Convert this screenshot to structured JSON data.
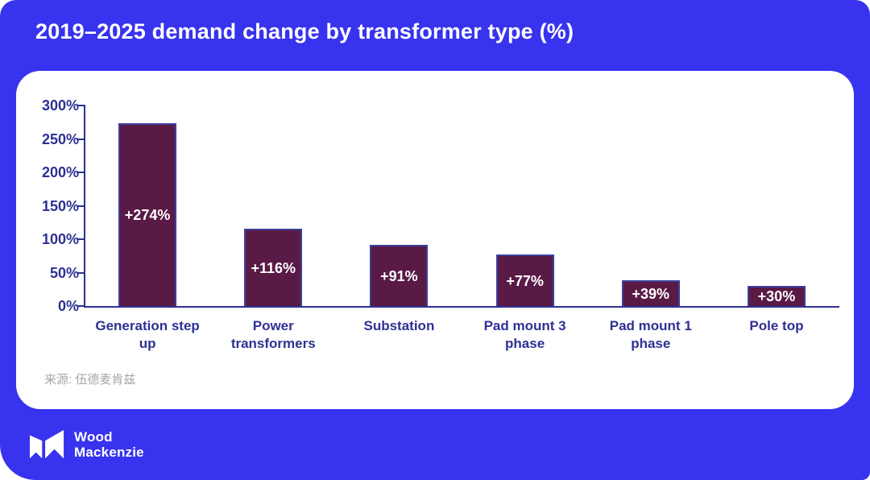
{
  "page": {
    "title": "2019–2025 demand change by transformer type (%)"
  },
  "chart_data": {
    "type": "bar",
    "title": "2019–2025 demand change by transformer type (%)",
    "categories": [
      "Generation step\nup",
      "Power\ntransformers",
      "Substation",
      "Pad mount 3\nphase",
      "Pad mount 1\nphase",
      "Pole top"
    ],
    "values": [
      274,
      116,
      91,
      77,
      39,
      30
    ],
    "bar_labels": [
      "+274%",
      "+116%",
      "+91%",
      "+77%",
      "+39%",
      "+30%"
    ],
    "unit": "%",
    "ylim": [
      0,
      300
    ],
    "yticks": [
      0,
      50,
      100,
      150,
      200,
      250,
      300
    ],
    "ytick_labels": [
      "0%",
      "50%",
      "100%",
      "150%",
      "200%",
      "250%",
      "300%"
    ],
    "grid": false,
    "legend": false
  },
  "source": {
    "text": "来源: 伍德麦肯兹"
  },
  "logo": {
    "name": "Wood Mackenzie",
    "line1": "Wood",
    "line2": "Mackenzie"
  },
  "colors": {
    "panel": "#3733EE",
    "card": "#FFFFFF",
    "bar_fill": "#5A1A46",
    "bar_border": "#3B3F9E",
    "axis": "#2E3192",
    "bar_label": "#FFFFFF",
    "title": "#FFFFFF",
    "source": "#A6A6A6"
  }
}
